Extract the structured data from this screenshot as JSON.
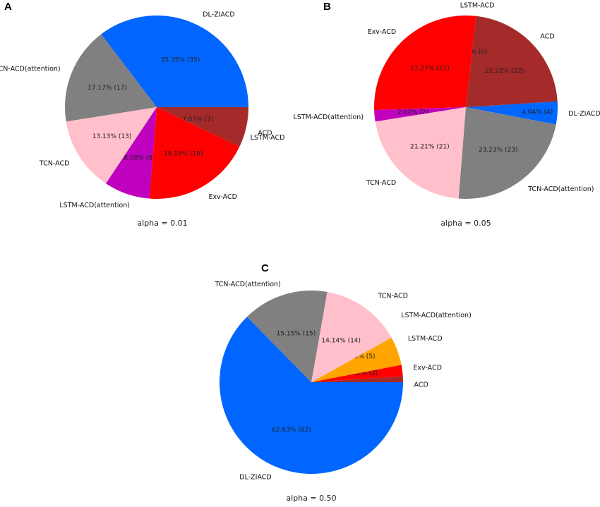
{
  "chart_data": [
    {
      "panel": "A",
      "type": "pie",
      "title": "alpha = 0.01",
      "slices": [
        {
          "label": "DL-ZIACD",
          "value": 35,
          "pct_text": "35.35%  (35)",
          "color": "#0066ff"
        },
        {
          "label": "TCN-ACD(attention)",
          "value": 17,
          "pct_text": "17.17%  (17)",
          "color": "#808080"
        },
        {
          "label": "TCN-ACD",
          "value": 13,
          "pct_text": "13.13%  (13)",
          "color": "#ffc0cb"
        },
        {
          "label": "LSTM-ACD(attention)",
          "value": 8,
          "pct_text": "8.08%  (8)",
          "color": "#bf00bf"
        },
        {
          "label": "Exv-ACD",
          "value": 19,
          "pct_text": "19.19%  (19)",
          "color": "#ff0000"
        },
        {
          "label": "LSTM-ACD",
          "value": 0,
          "pct_text": "0.00%  (0)",
          "color": "#ffa500"
        },
        {
          "label": "ACD",
          "value": 7,
          "pct_text": "7.07%  (7)",
          "color": "#a52a2a"
        }
      ]
    },
    {
      "panel": "B",
      "type": "pie",
      "title": "alpha = 0.05",
      "slices": [
        {
          "label": "DL-ZIACD",
          "value": 4,
          "pct_text": "4.04%  (4)",
          "color": "#0066ff"
        },
        {
          "label": "ACD",
          "value": 22,
          "pct_text": "22.22%  (22)",
          "color": "#a52a2a"
        },
        {
          "label": "LSTM-ACD",
          "value": 0,
          "pct_text": "0.00%  (0)",
          "color": "#ffa500"
        },
        {
          "label": "Exv-ACD",
          "value": 27,
          "pct_text": "27.27%  (27)",
          "color": "#ff0000"
        },
        {
          "label": "LSTM-ACD(attention)",
          "value": 2,
          "pct_text": "2.02%  (2)",
          "color": "#bf00bf"
        },
        {
          "label": "TCN-ACD",
          "value": 21,
          "pct_text": "21.21%  (21)",
          "color": "#ffc0cb"
        },
        {
          "label": "TCN-ACD(attention)",
          "value": 23,
          "pct_text": "23.23%  (23)",
          "color": "#808080"
        }
      ]
    },
    {
      "panel": "C",
      "type": "pie",
      "title": "alpha = 0.50",
      "slices": [
        {
          "label": "ACD",
          "value": 1,
          "pct_text": "1.01%  (1)",
          "color": "#a52a2a"
        },
        {
          "label": "Exv-ACD",
          "value": 2,
          "pct_text": "2.02%  (2)",
          "color": "#ff0000"
        },
        {
          "label": "LSTM-ACD",
          "value": 5,
          "pct_text": "5.05%  (5)",
          "color": "#ffa500"
        },
        {
          "label": "LSTM-ACD(attention)",
          "value": 0,
          "pct_text": "0.00%  (0)",
          "color": "#bf00bf"
        },
        {
          "label": "TCN-ACD",
          "value": 14,
          "pct_text": "14.14%  (14)",
          "color": "#ffc0cb"
        },
        {
          "label": "TCN-ACD(attention)",
          "value": 15,
          "pct_text": "15.15%  (15)",
          "color": "#808080"
        },
        {
          "label": "DL-ZIACD",
          "value": 62,
          "pct_text": "62.63%  (62)",
          "color": "#0066ff"
        }
      ]
    }
  ]
}
